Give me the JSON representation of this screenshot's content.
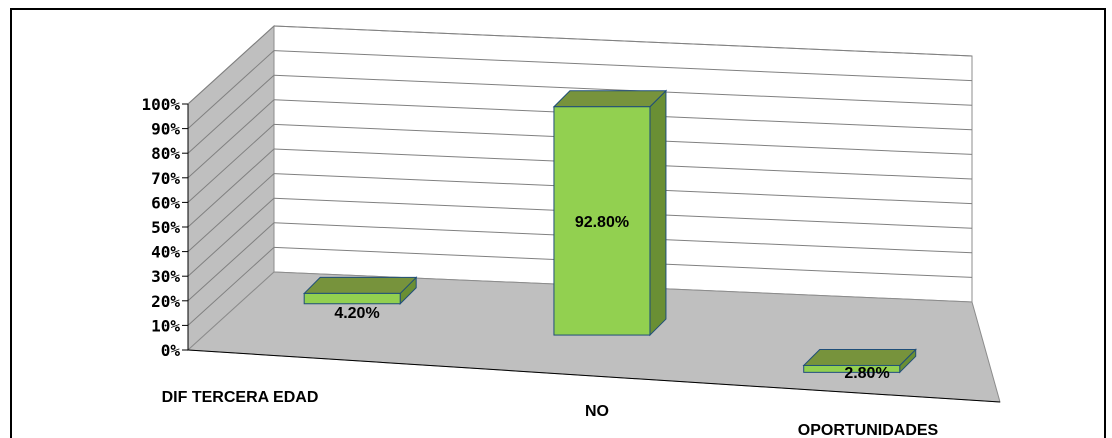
{
  "chart_data": {
    "type": "bar",
    "style": "3d-column",
    "categories": [
      "DIF TERCERA EDAD",
      "NO",
      "OPORTUNIDADES"
    ],
    "values": [
      4.2,
      92.8,
      2.8
    ],
    "data_labels": [
      "4.20%",
      "92.80%",
      "2.80%"
    ],
    "title": "",
    "xlabel": "",
    "ylabel": "",
    "ylim": [
      0,
      100
    ],
    "y_ticks": [
      "0%",
      "10%",
      "20%",
      "30%",
      "40%",
      "50%",
      "60%",
      "70%",
      "80%",
      "90%",
      "100%"
    ],
    "grid": true,
    "legend": "none",
    "colors": {
      "bar_front": "#92d050",
      "bar_top": "#77933c",
      "bar_side": "#6a8f34",
      "bar_edge": "#1f4e79",
      "back_wall": "#ffffff",
      "side_wall": "#bfbfbf",
      "floor": "#bfbfbf",
      "gridline": "#808080"
    }
  }
}
